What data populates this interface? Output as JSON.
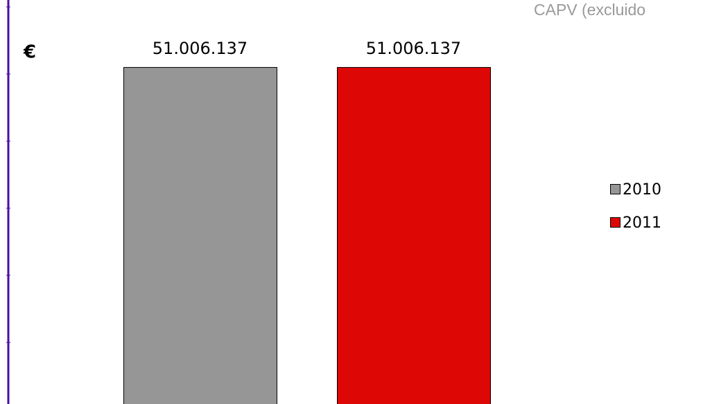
{
  "chart_data": {
    "type": "bar",
    "title": "CAPV (excluido",
    "y_label": "€",
    "categories": [
      "2010",
      "2011"
    ],
    "values": [
      51006137,
      51006137
    ],
    "value_labels": [
      "51.006.137",
      "51.006.137"
    ],
    "colors": [
      "#969696",
      "#dd0806"
    ],
    "ylim": [
      0,
      60000000
    ],
    "legend": "right"
  }
}
